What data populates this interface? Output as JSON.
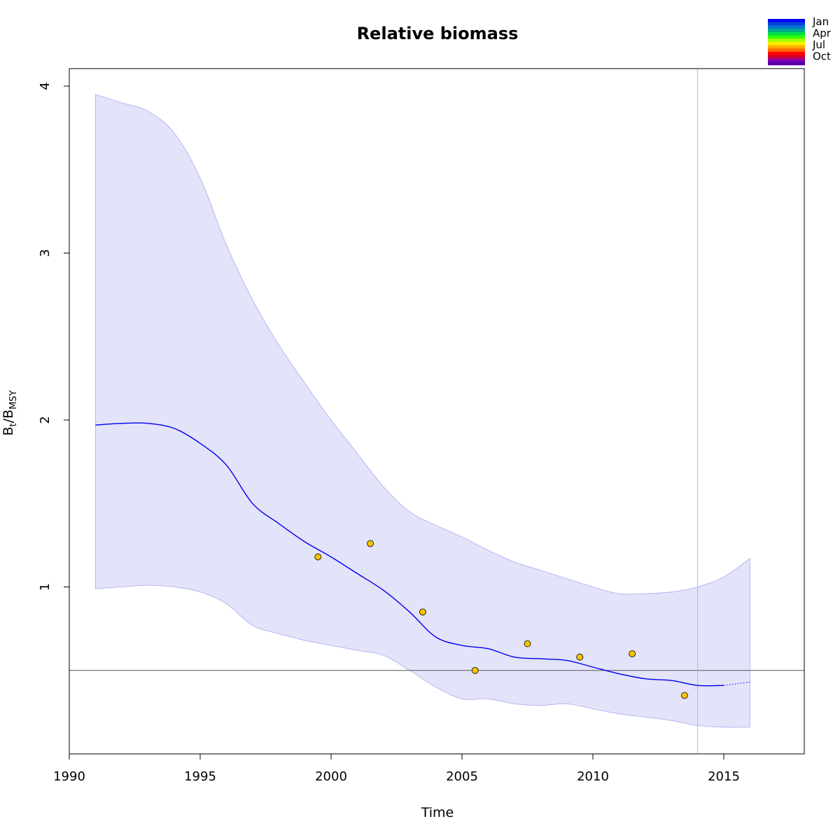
{
  "chart_data": {
    "type": "line",
    "title": "Relative biomass",
    "xlabel": "Time",
    "ylabel": {
      "main": "B",
      "sub1": "t",
      "sep": "/B",
      "sub2": "MSY"
    },
    "xlim": [
      1990,
      2018
    ],
    "ylim": [
      0,
      4.1
    ],
    "x_ticks": [
      "1990",
      "1995",
      "2000",
      "2005",
      "2010",
      "2015"
    ],
    "y_ticks": [
      "1",
      "2",
      "3",
      "4"
    ],
    "grid": false,
    "reference_line_y": 0.5,
    "reference_line_x": 2014,
    "ci_band": {
      "color": "#e3e3fa",
      "edge_color": "#aaaaf0",
      "x": [
        1991,
        1992,
        1993,
        1994,
        1995,
        1996,
        1997,
        1998,
        1999,
        2000,
        2001,
        2002,
        2003,
        2004,
        2005,
        2006,
        2007,
        2008,
        2009,
        2010,
        2011,
        2012,
        2013,
        2014,
        2015,
        2016
      ],
      "upper": [
        3.95,
        3.9,
        3.85,
        3.72,
        3.45,
        3.05,
        2.72,
        2.45,
        2.22,
        2.0,
        1.8,
        1.6,
        1.45,
        1.37,
        1.3,
        1.22,
        1.15,
        1.1,
        1.05,
        1.0,
        0.96,
        0.96,
        0.97,
        1.0,
        1.06,
        1.17
      ],
      "lower": [
        0.99,
        1.0,
        1.01,
        1.0,
        0.97,
        0.9,
        0.77,
        0.72,
        0.68,
        0.65,
        0.62,
        0.59,
        0.5,
        0.4,
        0.33,
        0.33,
        0.3,
        0.29,
        0.3,
        0.27,
        0.24,
        0.22,
        0.2,
        0.17,
        0.16,
        0.16
      ]
    },
    "series": [
      {
        "color": "#0000ee",
        "x": [
          1991,
          1992,
          1993,
          1994,
          1995,
          1996,
          1997,
          1998,
          1999,
          2000,
          2001,
          2002,
          2003,
          2004,
          2005,
          2006,
          2007,
          2008,
          2009,
          2010,
          2011,
          2012,
          2013,
          2014,
          2015
        ],
        "values": [
          1.97,
          1.98,
          1.98,
          1.95,
          1.86,
          1.73,
          1.5,
          1.38,
          1.27,
          1.18,
          1.08,
          0.98,
          0.85,
          0.7,
          0.65,
          0.63,
          0.58,
          0.57,
          0.56,
          0.52,
          0.48,
          0.45,
          0.44,
          0.41,
          0.41
        ]
      },
      {
        "color": "#0000ee",
        "dotted": true,
        "x": [
          2015,
          2016
        ],
        "values": [
          0.41,
          0.43
        ]
      }
    ],
    "observations": {
      "color": "#f5c400",
      "x": [
        1999.5,
        2001.5,
        2003.5,
        2005.5,
        2007.5,
        2009.5,
        2011.5,
        2013.5
      ],
      "y": [
        1.18,
        1.26,
        0.85,
        0.5,
        0.66,
        0.58,
        0.6,
        0.35
      ]
    },
    "legend": {
      "placement": "top-right",
      "labels": [
        "Jan",
        "Apr",
        "Jul",
        "Oct"
      ],
      "colors": [
        "#0000ff",
        "#0044dd",
        "#0077cc",
        "#00aa88",
        "#00dd44",
        "#33ff00",
        "#aaff00",
        "#ffee00",
        "#ffaa00",
        "#ff6600",
        "#ff0000",
        "#cc0033",
        "#8800aa",
        "#5500aa"
      ]
    }
  }
}
